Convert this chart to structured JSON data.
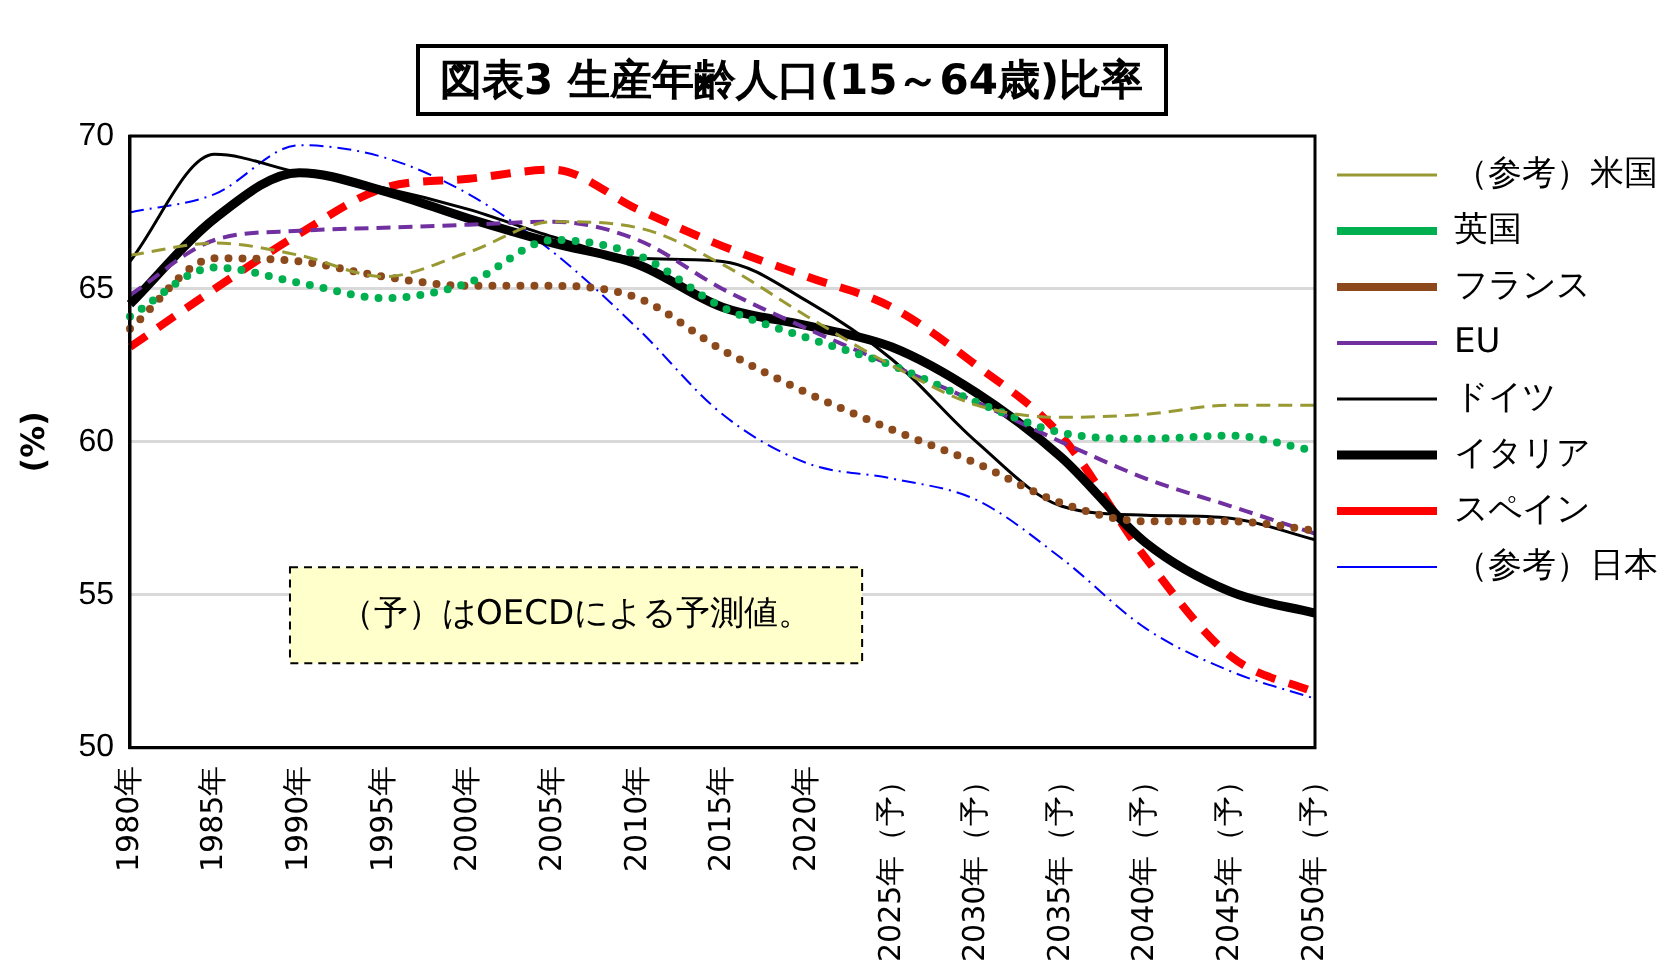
{
  "chart_data": {
    "type": "line",
    "title": "図表3  生産年齢人口(15～64歳)比率",
    "ylabel": "(%)",
    "categories": [
      "1980年",
      "1985年",
      "1990年",
      "1995年",
      "2000年",
      "2005年",
      "2010年",
      "2015年",
      "2020年",
      "2025年（予）",
      "2030年（予）",
      "2035年（予）",
      "2040年（予）",
      "2045年（予）",
      "2050年（予）"
    ],
    "ylim": [
      50,
      70
    ],
    "yticks": [
      50,
      55,
      60,
      65,
      70
    ],
    "grid": "y",
    "legend": "right",
    "marker": "none",
    "annotations": [
      "（予）はOECDによる予測値。"
    ],
    "series": [
      {
        "name": "（参考）米国",
        "color": "#999933",
        "line_style": "dashed",
        "values": [
          66.1,
          66.5,
          66.1,
          65.4,
          66.2,
          67.2,
          67.0,
          65.8,
          64.1,
          62.5,
          61.2,
          60.8,
          60.9,
          61.2,
          61.2
        ]
      },
      {
        "name": "英国",
        "color": "#00b050",
        "line_style": "dotted",
        "values": [
          64.1,
          65.7,
          65.2,
          64.7,
          65.2,
          66.6,
          66.1,
          64.4,
          63.4,
          62.5,
          61.3,
          60.3,
          60.1,
          60.2,
          59.7
        ]
      },
      {
        "name": "フランス",
        "color": "#8c4a1c",
        "line_style": "dotted",
        "values": [
          63.7,
          66.0,
          65.9,
          65.4,
          65.1,
          65.1,
          64.7,
          63.0,
          61.6,
          60.4,
          59.3,
          58.0,
          57.4,
          57.4,
          57.1
        ]
      },
      {
        "name": "EU",
        "color": "#7030a0",
        "line_style": "dashed",
        "values": [
          64.8,
          66.6,
          66.9,
          67.0,
          67.1,
          67.2,
          66.6,
          65.0,
          63.7,
          62.5,
          61.3,
          60.0,
          58.8,
          57.9,
          57.0
        ]
      },
      {
        "name": "ドイツ",
        "color": "#000000",
        "line_style": "solid",
        "values": [
          65.9,
          69.4,
          68.8,
          68.3,
          67.6,
          66.7,
          66.0,
          65.9,
          64.6,
          62.7,
          60.0,
          57.9,
          57.6,
          57.5,
          56.8
        ]
      },
      {
        "name": "イタリア",
        "color": "#000000",
        "line_style": "solid",
        "values": [
          64.5,
          67.3,
          68.8,
          68.2,
          67.3,
          66.5,
          65.8,
          64.4,
          63.8,
          63.1,
          61.6,
          59.5,
          56.7,
          55.1,
          54.4
        ]
      },
      {
        "name": "スペイン",
        "color": "#ff0000",
        "line_style": "dashed",
        "values": [
          63.1,
          65.0,
          66.8,
          68.3,
          68.6,
          68.9,
          67.6,
          66.4,
          65.4,
          64.4,
          62.5,
          60.2,
          56.2,
          53.0,
          51.8
        ]
      },
      {
        "name": "（参考）日本",
        "color": "#0000ff",
        "line_style": "dashed",
        "values": [
          67.5,
          68.1,
          69.7,
          69.3,
          68.1,
          66.2,
          63.7,
          60.9,
          59.3,
          58.8,
          58.1,
          56.2,
          53.9,
          52.5,
          51.6
        ]
      }
    ]
  }
}
